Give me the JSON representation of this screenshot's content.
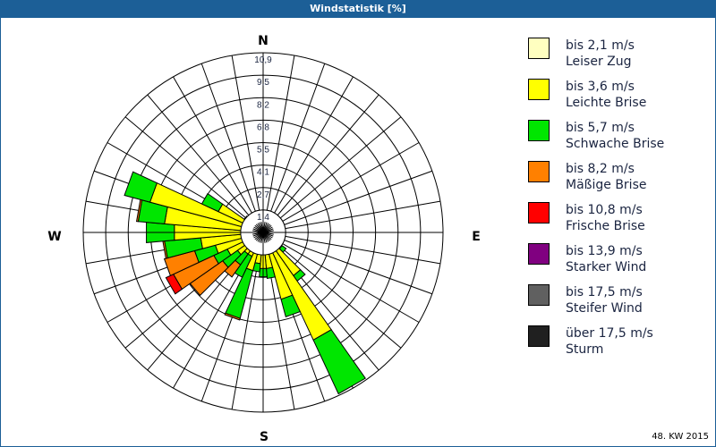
{
  "header": {
    "title": "Windstatistik [%]"
  },
  "footnote": "48. KW 2015",
  "compass": {
    "n": "N",
    "e": "E",
    "s": "S",
    "w": "W"
  },
  "legend": [
    {
      "range": "bis 2,1 m/s",
      "name": "Leiser Zug",
      "color": "#ffffc0"
    },
    {
      "range": "bis 3,6 m/s",
      "name": "Leichte Brise",
      "color": "#ffff00"
    },
    {
      "range": "bis 5,7 m/s",
      "name": "Schwache Brise",
      "color": "#00e600"
    },
    {
      "range": "bis 8,2 m/s",
      "name": "Mäßige Brise",
      "color": "#ff8000"
    },
    {
      "range": "bis 10,8 m/s",
      "name": "Frische Brise",
      "color": "#ff0000"
    },
    {
      "range": "bis 13,9 m/s",
      "name": "Starker Wind",
      "color": "#800080"
    },
    {
      "range": "bis 17,5 m/s",
      "name": "Steifer Wind",
      "color": "#606060"
    },
    {
      "range": "über 17,5 m/s",
      "name": "Sturm",
      "color": "#202020"
    }
  ],
  "chart_data": {
    "type": "polar-stacked-bar (wind rose)",
    "title": "Windstatistik [%]",
    "subtitle": "48. KW 2015",
    "radial_ticks": [
      "1,4",
      "2,7",
      "4,1",
      "5,5",
      "6,8",
      "8,2",
      "9,5",
      "10,9"
    ],
    "radial_max": 10.9,
    "sector_width_deg": 10,
    "series_names": [
      "Leiser Zug",
      "Leichte Brise",
      "Schwache Brise",
      "Mäßige Brise",
      "Frische Brise"
    ],
    "petals": [
      {
        "bearing": 130,
        "cum": [
          0.3,
          1.4,
          1.7,
          1.7,
          1.7
        ]
      },
      {
        "bearing": 140,
        "cum": [
          0.3,
          3.2,
          3.6,
          3.6,
          3.6
        ]
      },
      {
        "bearing": 150,
        "cum": [
          0.3,
          7.2,
          10.8,
          10.8,
          10.8
        ]
      },
      {
        "bearing": 160,
        "cum": [
          0.3,
          4.2,
          5.3,
          5.3,
          5.3
        ]
      },
      {
        "bearing": 170,
        "cum": [
          0.3,
          2.2,
          2.8,
          2.8,
          2.8
        ]
      },
      {
        "bearing": 180,
        "cum": [
          0.3,
          2.2,
          2.7,
          2.7,
          2.7
        ]
      },
      {
        "bearing": 190,
        "cum": [
          0.3,
          1.9,
          2.4,
          2.4,
          2.4
        ]
      },
      {
        "bearing": 200,
        "cum": [
          0.3,
          2.4,
          5.4,
          5.5,
          5.5
        ]
      },
      {
        "bearing": 210,
        "cum": [
          0.3,
          1.6,
          3.0,
          3.0,
          3.0
        ]
      },
      {
        "bearing": 220,
        "cum": [
          0.3,
          1.6,
          2.4,
          3.3,
          3.3
        ]
      },
      {
        "bearing": 230,
        "cum": [
          0.3,
          1.9,
          3.0,
          5.4,
          5.4
        ]
      },
      {
        "bearing": 240,
        "cum": [
          0.3,
          2.4,
          3.3,
          6.0,
          6.5
        ]
      },
      {
        "bearing": 250,
        "cum": [
          0.3,
          3.0,
          4.3,
          6.2,
          6.2
        ]
      },
      {
        "bearing": 260,
        "cum": [
          0.3,
          3.8,
          6.0,
          6.1,
          6.1
        ]
      },
      {
        "bearing": 270,
        "cum": [
          0.3,
          5.4,
          7.1,
          7.1,
          7.1
        ]
      },
      {
        "bearing": 280,
        "cum": [
          0.3,
          6.0,
          7.6,
          7.7,
          7.7
        ]
      },
      {
        "bearing": 290,
        "cum": [
          0.3,
          7.1,
          8.7,
          8.7,
          8.7
        ]
      },
      {
        "bearing": 300,
        "cum": [
          0.3,
          3.0,
          4.1,
          4.1,
          4.1
        ]
      },
      {
        "bearing": 310,
        "cum": [
          0.3,
          1.4,
          1.4,
          1.4,
          1.4
        ]
      },
      {
        "bearing": 320,
        "cum": [
          0.2,
          0.9,
          0.9,
          0.9,
          0.9
        ]
      }
    ],
    "legend_position": "right"
  }
}
